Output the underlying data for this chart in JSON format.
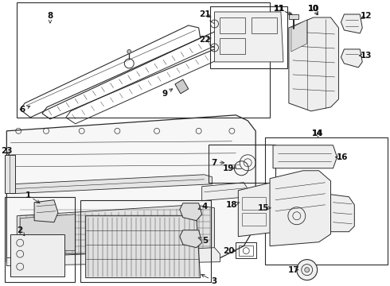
{
  "bg": "#ffffff",
  "lc": "#2a2a2a",
  "tc": "#111111",
  "fs": 6.5,
  "fig_w": 4.9,
  "fig_h": 3.6,
  "dpi": 100
}
